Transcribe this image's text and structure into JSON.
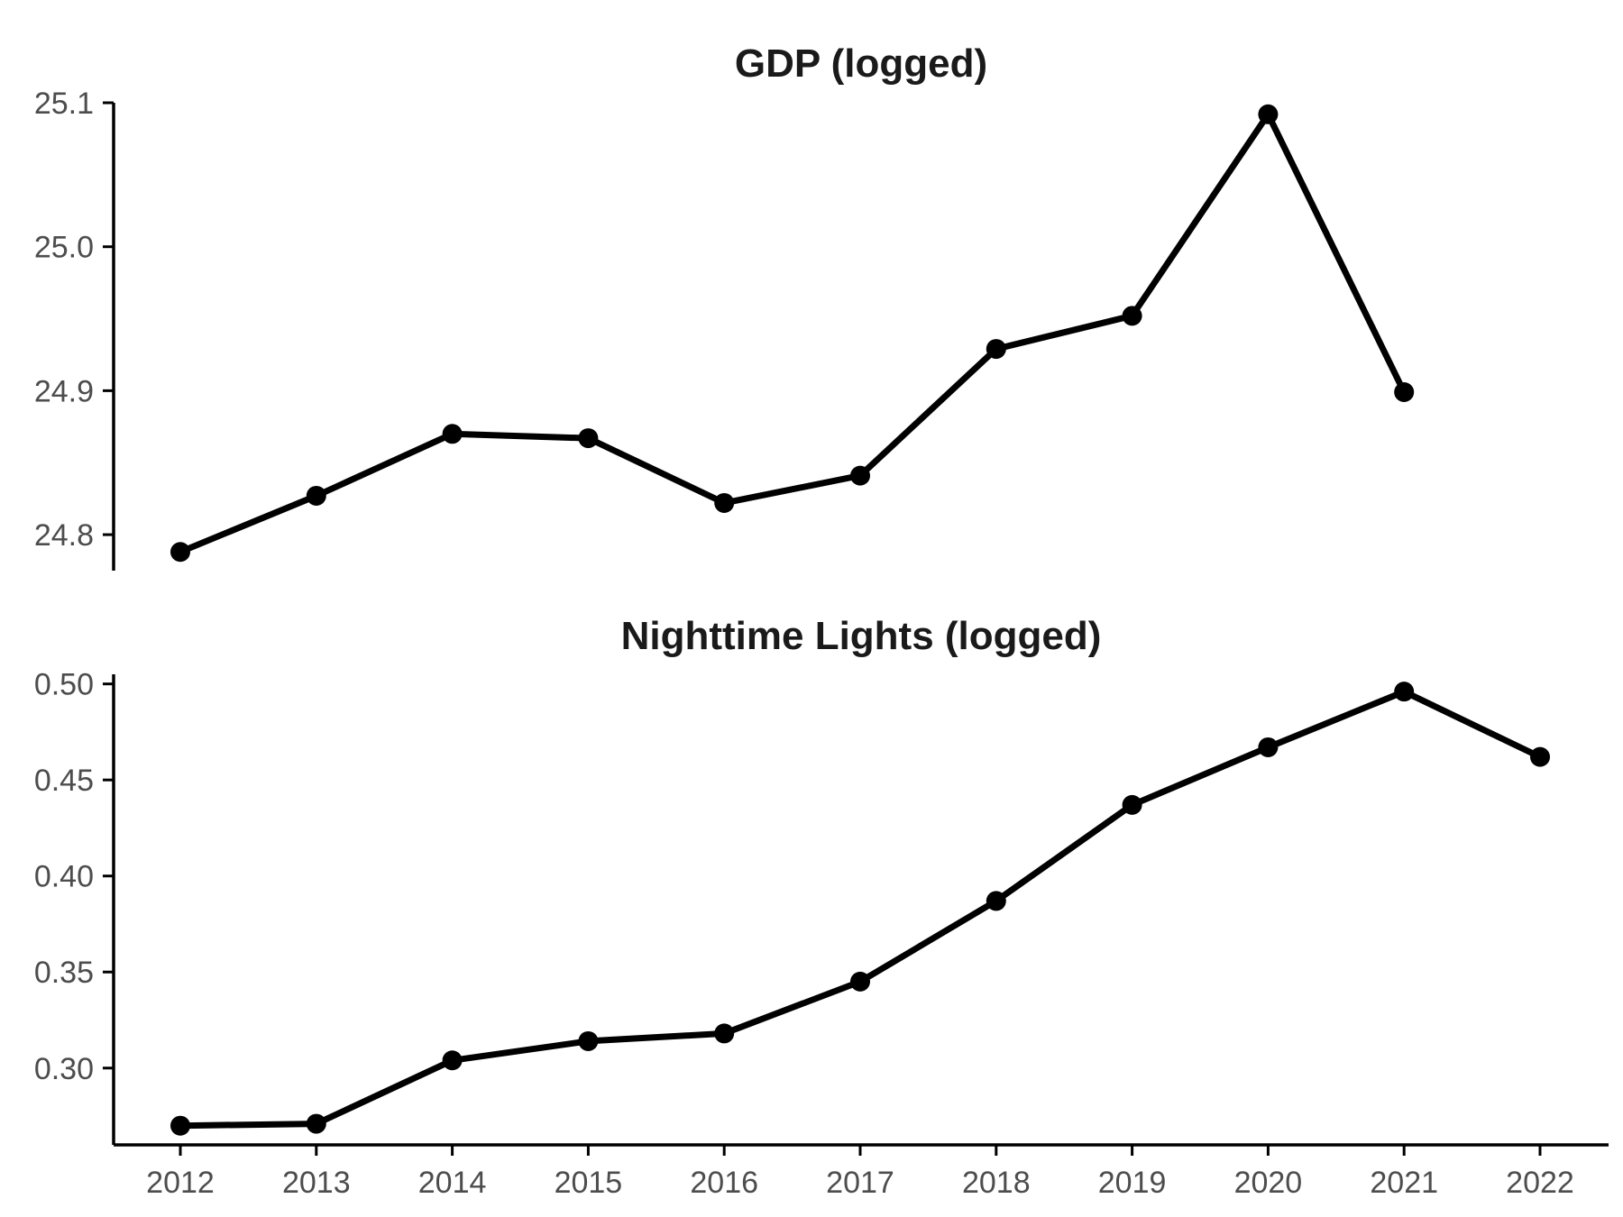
{
  "chart_data": [
    {
      "type": "line",
      "title": "GDP (logged)",
      "xlabel": "",
      "ylabel": "",
      "x": [
        2012,
        2013,
        2014,
        2015,
        2016,
        2017,
        2018,
        2019,
        2020,
        2021
      ],
      "values": [
        24.788,
        24.827,
        24.87,
        24.867,
        24.822,
        24.841,
        24.929,
        24.952,
        25.092,
        24.899
      ],
      "ylim": [
        24.775,
        25.1
      ],
      "yticks": [
        "24.8",
        "24.9",
        "25.0",
        "25.1"
      ],
      "show_x_axis": false
    },
    {
      "type": "line",
      "title": "Nighttime Lights (logged)",
      "xlabel": "",
      "ylabel": "",
      "x": [
        2012,
        2013,
        2014,
        2015,
        2016,
        2017,
        2018,
        2019,
        2020,
        2021,
        2022
      ],
      "values": [
        0.27,
        0.271,
        0.304,
        0.314,
        0.318,
        0.345,
        0.387,
        0.437,
        0.467,
        0.496,
        0.462
      ],
      "ylim": [
        0.26,
        0.505
      ],
      "yticks": [
        "0.30",
        "0.35",
        "0.40",
        "0.45",
        "0.50"
      ],
      "xticks": [
        "2012",
        "2013",
        "2014",
        "2015",
        "2016",
        "2017",
        "2018",
        "2019",
        "2020",
        "2021",
        "2022"
      ],
      "show_x_axis": true
    }
  ],
  "grid": false,
  "colors": {
    "line": "#000000",
    "text": "#1a1a1a",
    "tick_text": "#4d4d4d"
  }
}
